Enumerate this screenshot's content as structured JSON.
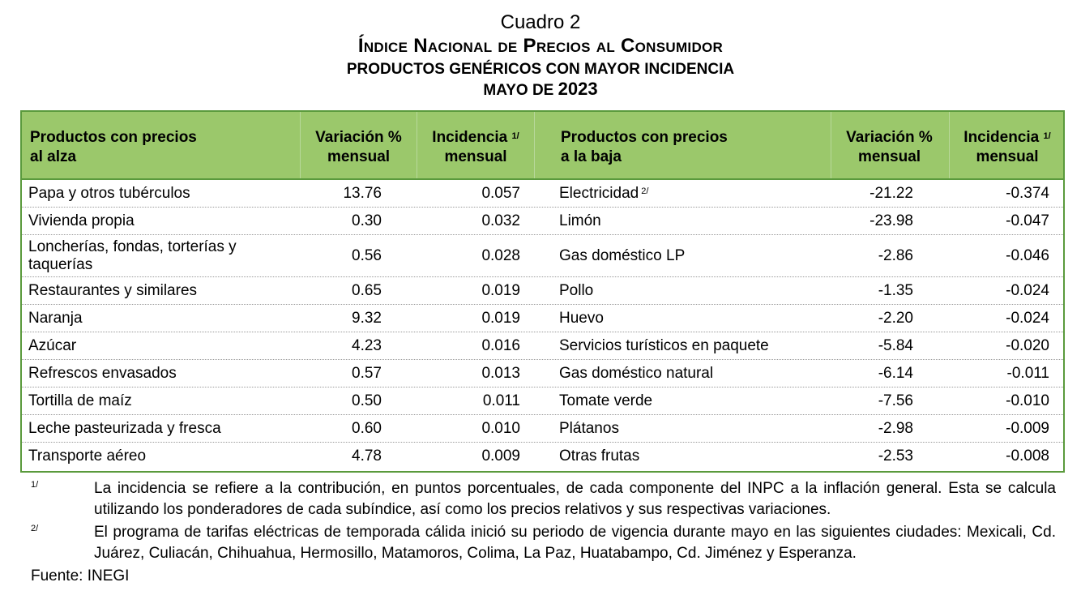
{
  "title": {
    "cuadro": "Cuadro 2",
    "main": "Índice Nacional de Precios al Consumidor",
    "sub": "PRODUCTOS GENÉRICOS CON MAYOR INCIDENCIA",
    "period_prefix": "MAYO DE ",
    "period_year": "2023"
  },
  "headers": {
    "left_product_1": "Productos con precios",
    "left_product_2": "al alza",
    "var_1": "Variación %",
    "var_2": "mensual",
    "inc_1": "Incidencia",
    "inc_sup": "1/",
    "inc_2": "mensual",
    "right_product_1": "Productos con precios",
    "right_product_2": "a la baja"
  },
  "rows": [
    {
      "up_name": "Papa y otros tubérculos",
      "up_var": "13.76",
      "up_inc": "0.057",
      "down_name": "Electricidad",
      "down_sup": "2/",
      "down_var": "-21.22",
      "down_inc": "-0.374"
    },
    {
      "up_name": "Vivienda propia",
      "up_var": "0.30",
      "up_inc": "0.032",
      "down_name": "Limón",
      "down_sup": "",
      "down_var": "-23.98",
      "down_inc": "-0.047"
    },
    {
      "up_name": "Loncherías, fondas, torterías y taquerías",
      "up_var": "0.56",
      "up_inc": "0.028",
      "down_name": "Gas doméstico LP",
      "down_sup": "",
      "down_var": "-2.86",
      "down_inc": "-0.046"
    },
    {
      "up_name": "Restaurantes y similares",
      "up_var": "0.65",
      "up_inc": "0.019",
      "down_name": "Pollo",
      "down_sup": "",
      "down_var": "-1.35",
      "down_inc": "-0.024"
    },
    {
      "up_name": "Naranja",
      "up_var": "9.32",
      "up_inc": "0.019",
      "down_name": "Huevo",
      "down_sup": "",
      "down_var": "-2.20",
      "down_inc": "-0.024"
    },
    {
      "up_name": "Azúcar",
      "up_var": "4.23",
      "up_inc": "0.016",
      "down_name": "Servicios turísticos en paquete",
      "down_sup": "",
      "down_var": "-5.84",
      "down_inc": "-0.020"
    },
    {
      "up_name": "Refrescos envasados",
      "up_var": "0.57",
      "up_inc": "0.013",
      "down_name": "Gas doméstico natural",
      "down_sup": "",
      "down_var": "-6.14",
      "down_inc": "-0.011"
    },
    {
      "up_name": "Tortilla de maíz",
      "up_var": "0.50",
      "up_inc": "0.011",
      "down_name": "Tomate verde",
      "down_sup": "",
      "down_var": "-7.56",
      "down_inc": "-0.010"
    },
    {
      "up_name": "Leche pasteurizada y fresca",
      "up_var": "0.60",
      "up_inc": "0.010",
      "down_name": "Plátanos",
      "down_sup": "",
      "down_var": "-2.98",
      "down_inc": "-0.009"
    },
    {
      "up_name": "Transporte aéreo",
      "up_var": "4.78",
      "up_inc": "0.009",
      "down_name": "Otras frutas",
      "down_sup": "",
      "down_var": "-2.53",
      "down_inc": "-0.008"
    }
  ],
  "notes": [
    {
      "marker": "1/",
      "text": "La incidencia se refiere a la contribución, en puntos porcentuales, de cada componente del INPC a la inflación general. Esta se calcula utilizando los ponderadores de cada subíndice, así como los precios relativos y sus respectivas variaciones."
    },
    {
      "marker": "2/",
      "text": "El programa de tarifas eléctricas de temporada cálida inició su periodo de vigencia durante mayo en las siguientes ciudades: Mexicali, Cd. Juárez, Culiacán, Chihuahua, Hermosillo, Matamoros, Colima, La Paz, Huatabampo, Cd. Jiménez y Esperanza."
    }
  ],
  "source": "Fuente: INEGI",
  "colors": {
    "header_bg": "#9bc86b",
    "border": "#5a9a3c"
  }
}
